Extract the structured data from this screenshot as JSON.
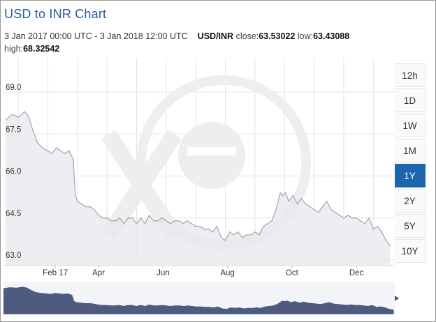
{
  "header": {
    "title": "USD to INR Chart",
    "range": "3 Jan 2017 00:00 UTC - 3 Jan 2018 12:00 UTC",
    "pair": "USD/INR",
    "close_label": "close:",
    "close_value": "63.53022",
    "low_label": "low:",
    "low_value": "63.43088",
    "high_label": "high:",
    "high_value": "68.32542"
  },
  "zoom": {
    "buttons": [
      "12h",
      "1D",
      "1W",
      "1M",
      "1Y",
      "2Y",
      "5Y",
      "10Y"
    ],
    "active": "1Y"
  },
  "colors": {
    "line": "#a8aab4",
    "area": "#e6e8ee",
    "nav_fill": "#4e5a80",
    "active": "#1d66ad",
    "grid": "#e4e4e4",
    "watermark": "#eeeeee"
  },
  "watermark_icon": "xe-logo-watermark",
  "chart_data": {
    "type": "area",
    "x_tick_labels": [
      "Feb 17",
      "Apr",
      "Jun",
      "Aug",
      "Oct",
      "Dec"
    ],
    "x_tick_days": [
      47,
      88,
      149,
      210,
      271,
      332
    ],
    "y_tick_labels": [
      "63.0",
      "64.5",
      "66.0",
      "67.5",
      "69.0"
    ],
    "ylim": [
      63.0,
      69.0
    ],
    "xlim_days": [
      0,
      365
    ],
    "grid": true,
    "series": [
      {
        "x_days": [
          0,
          6,
          12,
          18,
          22,
          26,
          30,
          35,
          40,
          44,
          48,
          52,
          56,
          60,
          64,
          66,
          68,
          72,
          76,
          80,
          84,
          88,
          92,
          96,
          100,
          104,
          108,
          112,
          116,
          120,
          124,
          128,
          132,
          136,
          140,
          144,
          148,
          152,
          156,
          160,
          164,
          168,
          172,
          176,
          180,
          184,
          188,
          192,
          196,
          200,
          204,
          208,
          212,
          216,
          220,
          224,
          228,
          232,
          236,
          240,
          244,
          248,
          252,
          256,
          260,
          262,
          265,
          268,
          272,
          276,
          280,
          284,
          288,
          292,
          296,
          300,
          304,
          308,
          312,
          316,
          320,
          324,
          328,
          332,
          336,
          340,
          344,
          348,
          352,
          356,
          360,
          364
        ],
        "y": [
          68.0,
          68.2,
          68.1,
          68.3,
          68.1,
          67.6,
          67.2,
          67.0,
          66.9,
          66.8,
          67.0,
          66.9,
          66.8,
          66.9,
          66.6,
          65.3,
          65.1,
          65.0,
          64.9,
          64.9,
          64.8,
          64.6,
          64.5,
          64.5,
          64.4,
          64.4,
          64.5,
          64.3,
          64.5,
          64.5,
          64.3,
          64.5,
          64.3,
          64.6,
          64.4,
          64.4,
          64.5,
          64.4,
          64.3,
          64.4,
          64.4,
          64.3,
          64.4,
          64.3,
          64.2,
          64.2,
          64.1,
          64.1,
          64.0,
          64.2,
          63.8,
          63.7,
          64.0,
          63.9,
          64.0,
          63.8,
          63.9,
          63.9,
          64.0,
          63.9,
          64.2,
          64.3,
          64.4,
          64.8,
          65.4,
          65.3,
          65.4,
          65.1,
          65.3,
          65.0,
          65.2,
          65.0,
          64.9,
          64.8,
          64.7,
          64.9,
          65.1,
          64.8,
          64.7,
          64.6,
          64.5,
          64.6,
          64.5,
          64.5,
          64.4,
          64.3,
          64.5,
          64.1,
          64.2,
          64.0,
          63.7,
          63.5
        ]
      }
    ]
  }
}
